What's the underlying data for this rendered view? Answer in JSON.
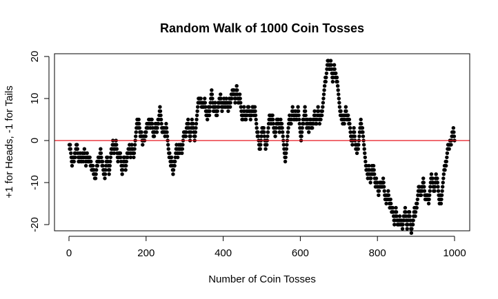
{
  "chart_data": {
    "type": "scatter",
    "title": "Random Walk of 1000 Coin Tosses",
    "xlabel": "Number of Coin Tosses",
    "ylabel": "+1 for Heads, -1 for Tails",
    "xlim": [
      0,
      1000
    ],
    "ylim": [
      -20,
      20
    ],
    "x_ticks": [
      0,
      200,
      400,
      600,
      800,
      1000
    ],
    "y_ticks": [
      -20,
      -10,
      0,
      10,
      20
    ],
    "x_tick_labels": [
      "0",
      "200",
      "400",
      "600",
      "800",
      "1000"
    ],
    "y_tick_labels": [
      "-20",
      "-10",
      "0",
      "10",
      "20"
    ],
    "reference_line": {
      "y": 0,
      "color": "#e8141c"
    },
    "point_color": "#000000",
    "grid": false,
    "series": [
      {
        "n_points": 1000,
        "walk_anchors": [
          [
            1,
            -1
          ],
          [
            10,
            -4
          ],
          [
            20,
            -2
          ],
          [
            30,
            -4
          ],
          [
            40,
            -2
          ],
          [
            50,
            -5
          ],
          [
            60,
            -6
          ],
          [
            70,
            -9
          ],
          [
            80,
            -5
          ],
          [
            90,
            -7
          ],
          [
            100,
            -4
          ],
          [
            105,
            -8
          ],
          [
            115,
            -1
          ],
          [
            125,
            -3
          ],
          [
            140,
            -6
          ],
          [
            150,
            -5
          ],
          [
            165,
            -2
          ],
          [
            178,
            5
          ],
          [
            190,
            0
          ],
          [
            200,
            2
          ],
          [
            215,
            5
          ],
          [
            225,
            3
          ],
          [
            240,
            4
          ],
          [
            250,
            1
          ],
          [
            260,
            -4
          ],
          [
            270,
            -7
          ],
          [
            290,
            -1
          ],
          [
            305,
            2
          ],
          [
            320,
            5
          ],
          [
            335,
            8
          ],
          [
            350,
            8
          ],
          [
            360,
            6
          ],
          [
            375,
            7
          ],
          [
            390,
            10
          ],
          [
            400,
            9
          ],
          [
            410,
            8
          ],
          [
            425,
            12
          ],
          [
            435,
            12
          ],
          [
            445,
            10
          ],
          [
            455,
            8
          ],
          [
            465,
            7
          ],
          [
            480,
            6
          ],
          [
            490,
            1
          ],
          [
            500,
            2
          ],
          [
            510,
            -1
          ],
          [
            520,
            5
          ],
          [
            535,
            2
          ],
          [
            545,
            3
          ],
          [
            560,
            -3
          ],
          [
            570,
            4
          ],
          [
            580,
            7
          ],
          [
            590,
            5
          ],
          [
            605,
            3
          ],
          [
            620,
            5
          ],
          [
            630,
            3
          ],
          [
            640,
            4
          ],
          [
            655,
            7
          ],
          [
            665,
            14
          ],
          [
            680,
            18
          ],
          [
            690,
            16
          ],
          [
            700,
            10
          ],
          [
            710,
            5
          ],
          [
            730,
            3
          ],
          [
            745,
            -2
          ],
          [
            755,
            3
          ],
          [
            770,
            -5
          ],
          [
            785,
            -7
          ],
          [
            795,
            -11
          ],
          [
            810,
            -10
          ],
          [
            820,
            -13
          ],
          [
            840,
            -16
          ],
          [
            860,
            -19
          ],
          [
            875,
            -18
          ],
          [
            890,
            -20
          ],
          [
            900,
            -17
          ],
          [
            915,
            -12
          ],
          [
            925,
            -13
          ],
          [
            940,
            -9
          ],
          [
            950,
            -11
          ],
          [
            960,
            -14
          ],
          [
            975,
            -6
          ],
          [
            985,
            -2
          ],
          [
            995,
            2
          ],
          [
            1000,
            1
          ]
        ]
      }
    ]
  }
}
